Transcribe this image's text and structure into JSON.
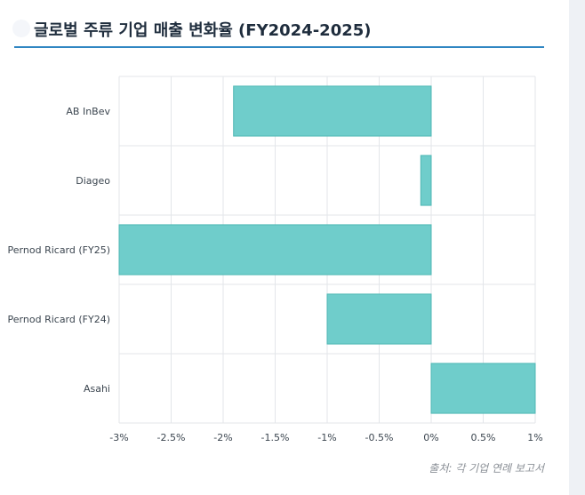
{
  "header": {
    "title": "글로벌 주류 기업 매출 변화율 (FY2024-2025)"
  },
  "source": "출처: 각 기업 연례 보고서",
  "chart_data": {
    "type": "bar",
    "orientation": "horizontal",
    "categories": [
      "AB InBev",
      "Diageo",
      "Pernod Ricard (FY25)",
      "Pernod Ricard (FY24)",
      "Asahi"
    ],
    "values": [
      -1.9,
      -0.1,
      -3.0,
      -1.0,
      1.0
    ],
    "xlim": [
      -3,
      1
    ],
    "xticks": [
      -3,
      -2.5,
      -2,
      -1.5,
      -1,
      -0.5,
      0,
      0.5,
      1
    ],
    "xtick_labels": [
      "-3%",
      "-2.5%",
      "-2%",
      "-1.5%",
      "-1%",
      "-0.5%",
      "0%",
      "0.5%",
      "1%"
    ],
    "grid": true,
    "colors": {
      "bar_fill": "#6fcdcb",
      "bar_stroke": "#4fb7b4",
      "grid": "#e3e6ea"
    }
  }
}
